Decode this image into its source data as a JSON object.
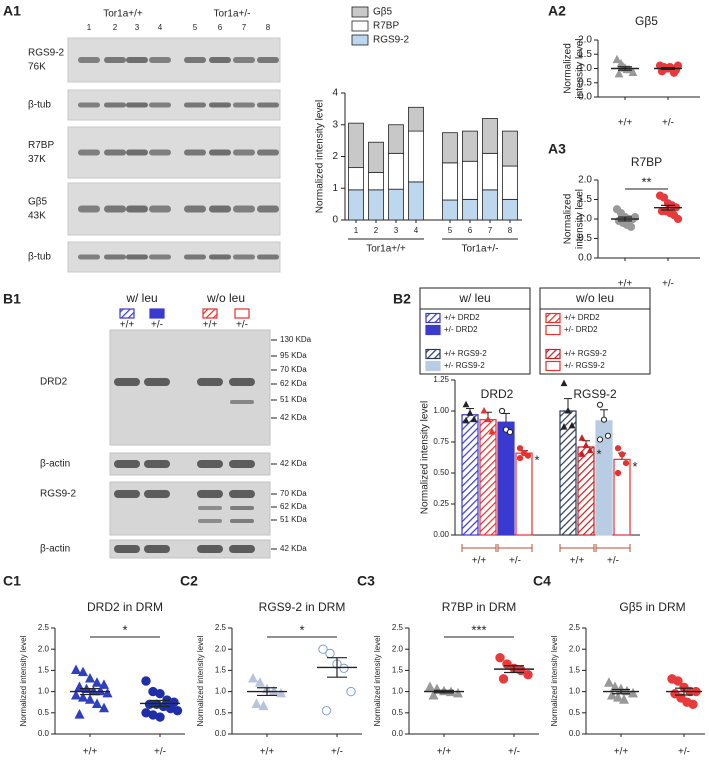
{
  "blots": {
    "A1": {
      "panel": "A1",
      "groups": [
        "Tor1a+/+",
        "Tor1a+/-"
      ],
      "lanes": [
        "1",
        "2",
        "3",
        "4",
        "5",
        "6",
        "7",
        "8"
      ],
      "rows": [
        [
          "RGS9-2",
          "76K"
        ],
        [
          "β-tub"
        ],
        [
          "R7BP",
          "37K"
        ],
        [
          "Gβ5",
          "43K"
        ],
        [
          "β-tub"
        ]
      ]
    },
    "B1": {
      "panel": "B1",
      "conditions": [
        "w/ leu",
        "w/o leu"
      ],
      "lanes": [
        "+/+",
        "+/-",
        "+/+",
        "+/-"
      ],
      "rows": [
        "DRD2",
        "β-actin",
        "RGS9-2",
        "β-actin"
      ],
      "markers": [
        [
          "130 KDa",
          "95 KDa",
          "70 KDa",
          "62 KDa",
          "51 KDa",
          "42 KDa"
        ],
        [
          "42 KDa"
        ],
        [
          "70 KDa",
          "62 KDa",
          "51 KDa"
        ],
        [
          "42 KDa"
        ]
      ]
    }
  },
  "chart_data": [
    {
      "type": "stacked-bar",
      "ylabel": "Normalized intensity level",
      "categories": [
        "1",
        "2",
        "3",
        "4",
        "5",
        "6",
        "7",
        "8"
      ],
      "groups": [
        "Tor1a+/+",
        "Tor1a+/-"
      ],
      "series": [
        {
          "name": "Gβ5",
          "color": "#c8c8c8",
          "values": [
            1.4,
            0.95,
            0.9,
            0.75,
            0.95,
            0.95,
            1.1,
            1.1
          ]
        },
        {
          "name": "R7BP",
          "color": "#ffffff",
          "values": [
            0.7,
            0.55,
            1.13,
            1.6,
            1.17,
            1.2,
            1.15,
            1.05
          ]
        },
        {
          "name": "RGS9-2",
          "color": "#bdd7ee",
          "values": [
            0.95,
            0.95,
            0.97,
            1.2,
            0.63,
            0.65,
            0.95,
            0.65
          ]
        }
      ],
      "ylim": [
        0,
        4
      ],
      "yticks": [
        0,
        1,
        2,
        3,
        4
      ]
    },
    {
      "type": "dot",
      "panel": "A2",
      "title": "Gβ5",
      "ylabel": [
        "Normalized",
        "intensity level"
      ],
      "categories": [
        "+/+",
        "+/-"
      ],
      "groups": [
        {
          "color": "#999999",
          "marker": "triangle",
          "values": [
            1.3,
            1.15,
            1.0,
            0.95,
            0.85,
            0.8,
            1.05,
            0.95
          ],
          "mean": 1.0,
          "sem": 0.06
        },
        {
          "color": "#e83a3a",
          "marker": "circle",
          "values": [
            1.1,
            1.05,
            1.0,
            1.0,
            0.95,
            0.9,
            1.0,
            1.05,
            0.85,
            1.1
          ],
          "mean": 1.0,
          "sem": 0.03
        }
      ],
      "ylim": [
        0,
        2
      ],
      "yticks": [
        {
          "value": 0,
          "label": "0.0"
        },
        0.5,
        {
          "value": 1,
          "label": "1.0"
        },
        1.5,
        {
          "value": 2,
          "label": "2.0"
        }
      ]
    },
    {
      "type": "dot",
      "panel": "A3",
      "title": "R7BP",
      "ylabel": [
        "Normalized",
        "intensity level"
      ],
      "categories": [
        "+/+",
        "+/-"
      ],
      "groups": [
        {
          "color": "#999999",
          "marker": "circle",
          "values": [
            1.25,
            1.15,
            1.05,
            1.0,
            1.0,
            0.95,
            0.9,
            0.85,
            0.8,
            1.05
          ],
          "mean": 1.0,
          "sem": 0.05
        },
        {
          "color": "#e83a3a",
          "marker": "circle",
          "values": [
            1.6,
            1.55,
            1.4,
            1.35,
            1.3,
            1.2,
            1.2,
            1.15,
            1.1,
            1.0
          ],
          "mean": 1.29,
          "sem": 0.06
        }
      ],
      "ylim": [
        0,
        2
      ],
      "yticks": [
        {
          "value": 0,
          "label": "0.0"
        },
        0.5,
        {
          "value": 1,
          "label": "1.0"
        },
        1.5,
        {
          "value": 2,
          "label": "2.0"
        }
      ],
      "significance": "**"
    },
    {
      "type": "bar",
      "panel": "B2",
      "ylabel": "Normalized intensity level",
      "legend_titles": [
        "w/ leu",
        "w/o leu"
      ],
      "groups": [
        "DRD2",
        "RGS9-2"
      ],
      "xlabels": [
        "+/+",
        "+/-",
        "+/+",
        "+/-"
      ],
      "series": [
        {
          "name": "+/+ DRD2",
          "color": "#3a3ad0",
          "fill": "hatch",
          "marker": "triangle",
          "values": [
            0.97
          ],
          "errors": [
            0.05
          ],
          "points": [
            1.05,
            0.98,
            0.93,
            0.92
          ]
        },
        {
          "name": "+/-  DRD2",
          "color": "#3a3ad0",
          "fill": "solid",
          "marker": "circle",
          "values": [
            0.91
          ],
          "errors": [
            0.07
          ],
          "points": [
            1.0,
            0.85,
            0.83
          ]
        },
        {
          "name": "+/+ RGS9-2",
          "color": "#2b3a55",
          "fill": "hatch",
          "marker": "triangle",
          "values": [
            1.0
          ],
          "errors": [
            0.1
          ],
          "points": [
            1.22,
            1.0,
            0.88,
            0.87
          ]
        },
        {
          "name": "+/- RGS9-2",
          "color": "#b8cce4",
          "fill": "solid",
          "marker": "circle",
          "values": [
            0.92
          ],
          "errors": [
            0.09
          ],
          "points": [
            1.05,
            0.93,
            0.8,
            0.77
          ]
        },
        {
          "name": "+/+ DRD2",
          "color": "#e83030",
          "fill": "hatch",
          "marker": "triangle",
          "values": [
            0.93
          ],
          "errors": [
            0.06
          ],
          "points": [
            1.0,
            0.93,
            0.83
          ]
        },
        {
          "name": "+/-  DRD2",
          "color": "#e83030",
          "fill": "open",
          "marker": "circle",
          "values": [
            0.66
          ],
          "errors": [
            0.02
          ],
          "points": [
            0.7,
            0.66,
            0.64,
            0.62
          ],
          "significance": "*"
        },
        {
          "name": "+/+ RGS9-2",
          "color": "#c82020",
          "fill": "hatch",
          "marker": "triangle",
          "values": [
            0.71
          ],
          "errors": [
            0.05
          ],
          "points": [
            0.78,
            0.72,
            0.68,
            0.65
          ],
          "significance": "*"
        },
        {
          "name": "+/- RGS9-2",
          "color": "#e83030",
          "fill": "open",
          "marker": "circle",
          "values": [
            0.61
          ],
          "errors": [
            0.05
          ],
          "points": [
            0.7,
            0.65,
            0.58,
            0.5
          ],
          "significance": "*"
        }
      ],
      "ylim": [
        0,
        1.25
      ],
      "yticks": [
        {
          "value": 0,
          "label": "0.00"
        },
        0.25,
        {
          "value": 0.5,
          "label": "0.50"
        },
        0.75,
        {
          "value": 1,
          "label": "1.00"
        },
        1.25
      ]
    },
    {
      "type": "dot",
      "panel": "C1",
      "title": "DRD2 in DRM",
      "ylabel": "Normalized intensity level",
      "categories": [
        "+/+",
        "+/-"
      ],
      "groups": [
        {
          "color": "#2f3fbf",
          "marker": "triangle",
          "values": [
            1.5,
            1.45,
            1.3,
            1.2,
            1.15,
            1.1,
            1.05,
            1.0,
            1.0,
            0.95,
            0.9,
            0.85,
            0.8,
            0.7,
            0.6,
            0.45
          ],
          "mean": 1.0,
          "sem": 0.07
        },
        {
          "color": "#1f2fa8",
          "marker": "circle",
          "values": [
            1.25,
            1.0,
            0.95,
            0.8,
            0.75,
            0.7,
            0.7,
            0.65,
            0.6,
            0.55,
            0.5,
            0.45,
            0.4
          ],
          "mean": 0.72,
          "sem": 0.07
        }
      ],
      "ylim": [
        0,
        2.5
      ],
      "yticks": [
        {
          "value": 0,
          "label": "0.0"
        },
        0.5,
        {
          "value": 1,
          "label": "1.0"
        },
        1.5,
        {
          "value": 2,
          "label": "2.0"
        },
        2.5
      ],
      "significance": "*"
    },
    {
      "type": "dot",
      "panel": "C2",
      "title": "RGS9-2 in DRM",
      "ylabel": "Normalized intensity level",
      "categories": [
        "+/+",
        "+/-"
      ],
      "groups": [
        {
          "color": "#b8c4dc",
          "marker": "triangle",
          "values": [
            1.3,
            1.2,
            1.05,
            1.0,
            0.95,
            0.7,
            0.65
          ],
          "mean": 1.0,
          "sem": 0.09
        },
        {
          "color": "#7f9fd0",
          "marker": "circle-open",
          "values": [
            2.0,
            1.9,
            1.65,
            1.55,
            1.0,
            0.55
          ],
          "mean": 1.57,
          "sem": 0.23
        }
      ],
      "ylim": [
        0,
        2.5
      ],
      "yticks": [
        {
          "value": 0,
          "label": "0.0"
        },
        0.5,
        {
          "value": 1,
          "label": "1.0"
        },
        1.5,
        {
          "value": 2,
          "label": "2.0"
        },
        2.5
      ],
      "significance": "*"
    },
    {
      "type": "dot",
      "panel": "C3",
      "title": "R7BP in DRM",
      "ylabel": "Normalized intensity level",
      "categories": [
        "+/+",
        "+/-"
      ],
      "groups": [
        {
          "color": "#999999",
          "marker": "triangle",
          "values": [
            1.1,
            1.05,
            1.0,
            0.98,
            0.95,
            0.9
          ],
          "mean": 1.0,
          "sem": 0.03
        },
        {
          "color": "#e83a3a",
          "marker": "circle",
          "values": [
            1.8,
            1.65,
            1.55,
            1.5,
            1.4,
            1.3
          ],
          "mean": 1.53,
          "sem": 0.08
        }
      ],
      "ylim": [
        0,
        2.5
      ],
      "yticks": [
        {
          "value": 0,
          "label": "0.0"
        },
        0.5,
        {
          "value": 1,
          "label": "1.0"
        },
        1.5,
        {
          "value": 2,
          "label": "2.0"
        },
        2.5
      ],
      "significance": "***"
    },
    {
      "type": "dot",
      "panel": "C4",
      "title": "Gβ5 in DRM",
      "ylabel": "Normalized intensity level",
      "categories": [
        "+/+",
        "+/-"
      ],
      "groups": [
        {
          "color": "#999999",
          "marker": "triangle",
          "values": [
            1.2,
            1.1,
            1.05,
            1.0,
            0.95,
            0.9,
            0.85,
            0.8
          ],
          "mean": 1.0,
          "sem": 0.05
        },
        {
          "color": "#e83a3a",
          "marker": "circle",
          "values": [
            1.3,
            1.25,
            1.1,
            1.0,
            1.0,
            0.95,
            0.85,
            0.75,
            0.7
          ],
          "mean": 1.0,
          "sem": 0.08
        }
      ],
      "ylim": [
        0,
        2.5
      ],
      "yticks": [
        {
          "value": 0,
          "label": "0.0"
        },
        0.5,
        {
          "value": 1,
          "label": "1.0"
        },
        1.5,
        {
          "value": 2,
          "label": "2.0"
        },
        2.5
      ]
    }
  ]
}
